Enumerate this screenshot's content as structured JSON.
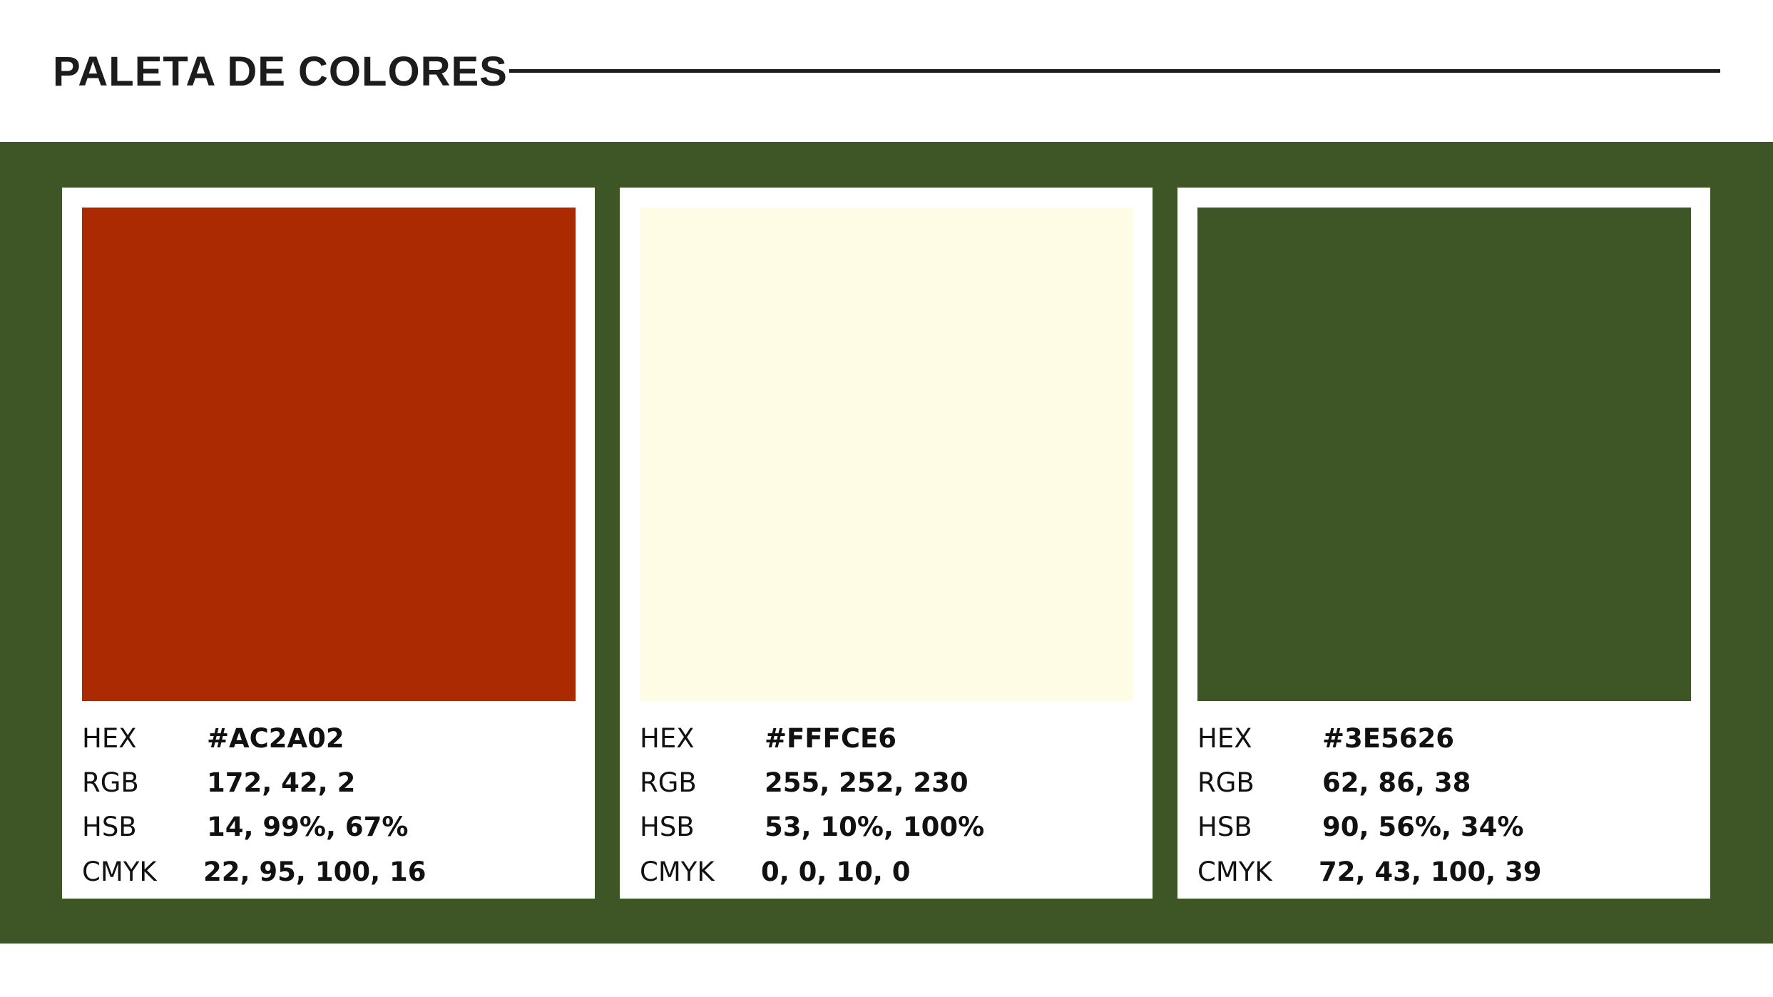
{
  "header": {
    "title": "PALETA DE COLORES"
  },
  "background_color": "#3E5626",
  "swatches": [
    {
      "color": "#AC2A02",
      "hex_label": "HEX",
      "hex_value": "#AC2A02",
      "rgb_label": "RGB",
      "rgb_value": "172, 42, 2",
      "hsb_label": "HSB",
      "hsb_value": "14, 99%, 67%",
      "cmyk_label": "CMYK",
      "cmyk_value": "22, 95, 100, 16"
    },
    {
      "color": "#FFFCE6",
      "hex_label": "HEX",
      "hex_value": "#FFFCE6",
      "rgb_label": "RGB",
      "rgb_value": "255, 252, 230",
      "hsb_label": "HSB",
      "hsb_value": "53, 10%, 100%",
      "cmyk_label": "CMYK",
      "cmyk_value": "0, 0, 10, 0"
    },
    {
      "color": "#3E5626",
      "hex_label": "HEX",
      "hex_value": "#3E5626",
      "rgb_label": "RGB",
      "rgb_value": "62, 86, 38",
      "hsb_label": "HSB",
      "hsb_value": "90, 56%, 34%",
      "cmyk_label": "CMYK",
      "cmyk_value": "72, 43, 100, 39"
    }
  ]
}
